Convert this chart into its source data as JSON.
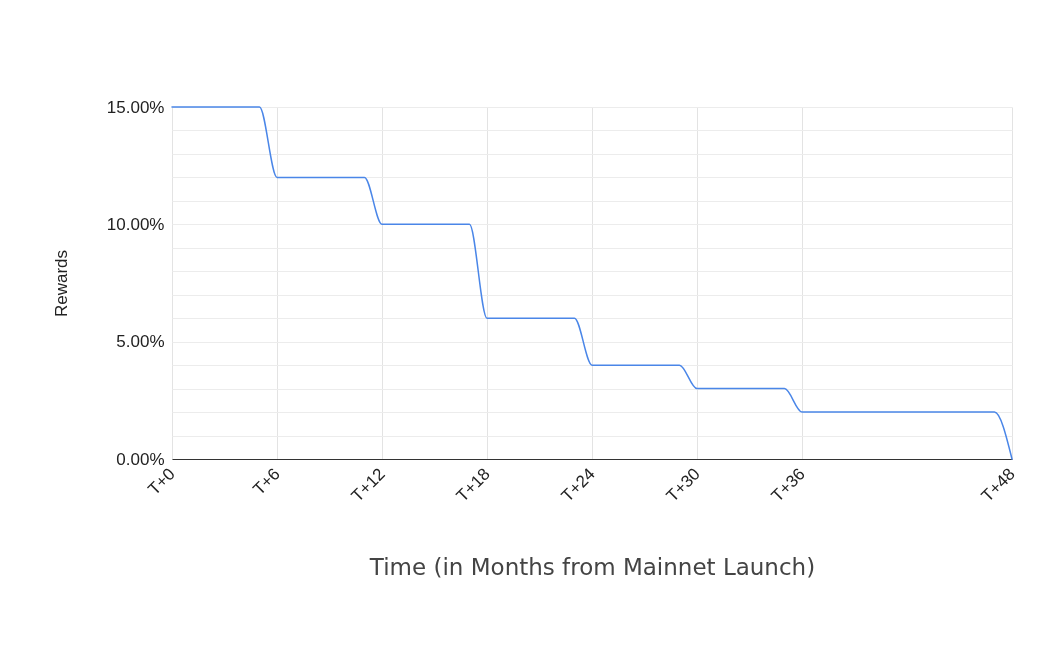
{
  "chart_data": {
    "type": "line",
    "xlabel": "Time (in Months from Mainnet Launch)",
    "ylabel": "Rewards",
    "categories": [
      "T+0",
      null,
      null,
      null,
      null,
      null,
      "T+6",
      null,
      null,
      null,
      null,
      null,
      "T+12",
      null,
      null,
      null,
      null,
      null,
      "T+18",
      null,
      null,
      null,
      null,
      null,
      "T+24",
      null,
      null,
      null,
      null,
      null,
      "T+30",
      null,
      null,
      null,
      null,
      null,
      "T+36",
      null,
      null,
      null,
      null,
      null,
      null,
      null,
      null,
      null,
      null,
      null,
      "T+48"
    ],
    "series": [
      {
        "color": "#4a86e8",
        "values": [
          15,
          15,
          15,
          15,
          15,
          15,
          12,
          12,
          12,
          12,
          12,
          12,
          10,
          10,
          10,
          10,
          10,
          10,
          6,
          6,
          6,
          6,
          6,
          6,
          4,
          4,
          4,
          4,
          4,
          4,
          3,
          3,
          3,
          3,
          3,
          3,
          2,
          2,
          2,
          2,
          2,
          2,
          2,
          2,
          2,
          2,
          2,
          2,
          0
        ]
      }
    ],
    "ylim": [
      0,
      15
    ],
    "yticks": [
      {
        "value": 0,
        "label": "0.00%"
      },
      {
        "value": 1,
        "label": null
      },
      {
        "value": 2,
        "label": null
      },
      {
        "value": 3,
        "label": null
      },
      {
        "value": 4,
        "label": null
      },
      {
        "value": 5,
        "label": "5.00%"
      },
      {
        "value": 6,
        "label": null
      },
      {
        "value": 7,
        "label": null
      },
      {
        "value": 8,
        "label": null
      },
      {
        "value": 9,
        "label": null
      },
      {
        "value": 10,
        "label": "10.00%"
      },
      {
        "value": 11,
        "label": null
      },
      {
        "value": 12,
        "label": null
      },
      {
        "value": 13,
        "label": null
      },
      {
        "value": 14,
        "label": null
      },
      {
        "value": 15,
        "label": "15.00%"
      }
    ],
    "grid": true,
    "marker": "none",
    "line_style": "solid"
  }
}
